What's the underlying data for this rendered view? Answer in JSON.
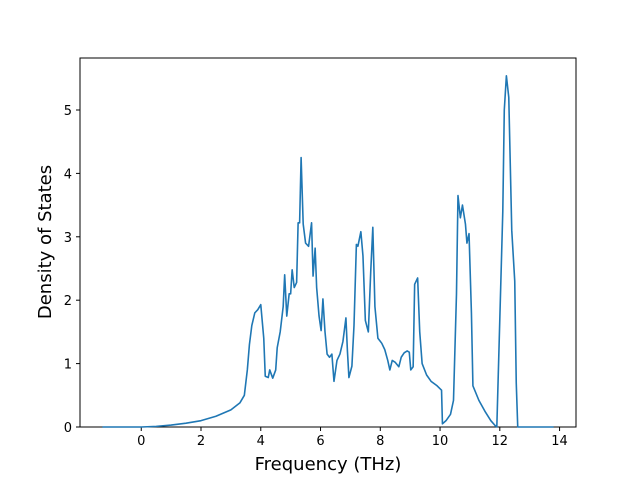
{
  "chart_data": {
    "type": "line",
    "xlabel": "Frequency (THz)",
    "ylabel": "Density of States",
    "xlim": [
      -2.05,
      14.55
    ],
    "ylim": [
      0,
      5.82
    ],
    "xticks": [
      0,
      2,
      4,
      6,
      8,
      10,
      12,
      14
    ],
    "yticks": [
      0,
      1,
      2,
      3,
      4,
      5
    ],
    "series": [
      {
        "color": "#1f77b4",
        "x": [
          -1.3,
          0,
          0.5,
          1,
          1.5,
          2,
          2.5,
          3,
          3.3,
          3.45,
          3.55,
          3.62,
          3.7,
          3.8,
          3.9,
          4.0,
          4.1,
          4.15,
          4.25,
          4.3,
          4.4,
          4.5,
          4.55,
          4.65,
          4.75,
          4.8,
          4.87,
          4.95,
          5.0,
          5.05,
          5.12,
          5.2,
          5.25,
          5.3,
          5.35,
          5.42,
          5.5,
          5.6,
          5.7,
          5.75,
          5.82,
          5.87,
          5.95,
          6.02,
          6.08,
          6.15,
          6.22,
          6.3,
          6.38,
          6.45,
          6.55,
          6.65,
          6.75,
          6.85,
          6.9,
          6.95,
          7.05,
          7.12,
          7.2,
          7.25,
          7.35,
          7.42,
          7.5,
          7.6,
          7.68,
          7.75,
          7.82,
          7.92,
          8.05,
          8.15,
          8.25,
          8.32,
          8.4,
          8.5,
          8.62,
          8.7,
          8.8,
          8.9,
          8.97,
          9.02,
          9.1,
          9.15,
          9.25,
          9.32,
          9.4,
          9.55,
          9.7,
          9.9,
          10.05,
          10.08,
          10.2,
          10.35,
          10.45,
          10.55,
          10.6,
          10.68,
          10.75,
          10.85,
          10.9,
          10.97,
          11.05,
          11.1,
          11.3,
          11.5,
          11.7,
          11.85,
          11.9,
          12.0,
          12.1,
          12.15,
          12.22,
          12.3,
          12.4,
          12.5,
          12.55,
          12.6,
          13.0,
          13.8
        ],
        "values": [
          0,
          0,
          0.01,
          0.03,
          0.06,
          0.1,
          0.17,
          0.27,
          0.38,
          0.5,
          0.9,
          1.3,
          1.6,
          1.8,
          1.85,
          1.93,
          1.4,
          0.8,
          0.78,
          0.9,
          0.77,
          0.9,
          1.25,
          1.5,
          1.9,
          2.4,
          1.75,
          2.1,
          2.1,
          2.48,
          2.2,
          2.28,
          3.22,
          3.22,
          4.25,
          3.2,
          2.9,
          2.85,
          3.22,
          2.38,
          2.82,
          2.2,
          1.75,
          1.52,
          2.02,
          1.5,
          1.15,
          1.1,
          1.15,
          0.72,
          1.05,
          1.15,
          1.35,
          1.72,
          1.2,
          0.78,
          0.96,
          1.6,
          2.88,
          2.85,
          3.08,
          2.7,
          1.68,
          1.5,
          2.45,
          3.15,
          1.9,
          1.4,
          1.32,
          1.22,
          1.05,
          0.9,
          1.05,
          1.02,
          0.95,
          1.1,
          1.17,
          1.2,
          1.18,
          0.9,
          0.95,
          2.25,
          2.35,
          1.5,
          1.0,
          0.82,
          0.72,
          0.65,
          0.58,
          0.05,
          0.1,
          0.2,
          0.42,
          2.1,
          3.65,
          3.3,
          3.5,
          3.2,
          2.9,
          3.05,
          1.8,
          0.65,
          0.42,
          0.25,
          0.1,
          0.02,
          0,
          1.7,
          3.4,
          5.0,
          5.54,
          5.2,
          3.1,
          2.3,
          0.7,
          0,
          0,
          0
        ]
      }
    ]
  }
}
